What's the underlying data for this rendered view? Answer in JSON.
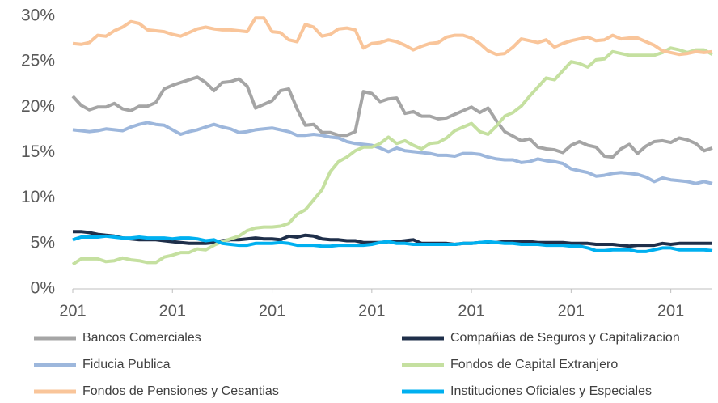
{
  "chart_data": {
    "type": "line",
    "categories": [
      "201",
      null,
      null,
      null,
      null,
      null,
      null,
      null,
      null,
      null,
      null,
      null,
      "201",
      null,
      null,
      null,
      null,
      null,
      null,
      null,
      null,
      null,
      null,
      null,
      "201",
      null,
      null,
      null,
      null,
      null,
      null,
      null,
      null,
      null,
      null,
      null,
      "201",
      null,
      null,
      null,
      null,
      null,
      null,
      null,
      null,
      null,
      null,
      null,
      "201",
      null,
      null,
      null,
      null,
      null,
      null,
      null,
      null,
      null,
      null,
      null,
      "201",
      null,
      null,
      null,
      null,
      null,
      null,
      null,
      null,
      null,
      null,
      null,
      "201",
      null,
      null,
      null,
      null,
      null
    ],
    "ylim": [
      0,
      30
    ],
    "yticks": [
      {
        "value": 0,
        "label": "0%"
      },
      {
        "value": 5,
        "label": "5%"
      },
      {
        "value": 10,
        "label": "10%"
      },
      {
        "value": 15,
        "label": "15%"
      },
      {
        "value": 20,
        "label": "20%"
      },
      {
        "value": 25,
        "label": "25%"
      },
      {
        "value": 30,
        "label": "30%"
      }
    ],
    "grid": false,
    "series": [
      {
        "name": "Bancos Comerciales",
        "color": "#a5a5a5",
        "values": [
          21.2,
          20.2,
          19.7,
          20.0,
          20.0,
          20.4,
          19.8,
          19.6,
          20.1,
          20.1,
          20.5,
          22.0,
          22.4,
          22.7,
          23.0,
          23.3,
          22.7,
          21.8,
          22.7,
          22.8,
          23.1,
          22.3,
          19.9,
          20.3,
          20.7,
          21.8,
          22.0,
          19.8,
          18.0,
          18.1,
          17.2,
          17.2,
          16.9,
          16.9,
          17.3,
          21.7,
          21.5,
          20.6,
          20.9,
          21.0,
          19.3,
          19.5,
          19.0,
          19.0,
          18.7,
          18.8,
          19.2,
          19.6,
          20.0,
          19.4,
          19.9,
          18.5,
          17.3,
          16.8,
          16.3,
          16.5,
          15.6,
          15.4,
          15.3,
          15.0,
          15.8,
          16.2,
          15.8,
          15.6,
          14.6,
          14.5,
          15.4,
          15.9,
          14.9,
          15.7,
          16.2,
          16.3,
          16.1,
          16.6,
          16.4,
          16.0,
          15.2,
          15.5
        ]
      },
      {
        "name": "Compañias de Seguros y Capitalizacion",
        "color": "#1f2f4a",
        "values": [
          6.3,
          6.3,
          6.2,
          6.0,
          5.9,
          5.8,
          5.6,
          5.5,
          5.4,
          5.4,
          5.4,
          5.3,
          5.2,
          5.1,
          5.0,
          5.0,
          5.0,
          5.1,
          5.3,
          5.4,
          5.4,
          5.5,
          5.6,
          5.5,
          5.5,
          5.4,
          5.8,
          5.7,
          5.9,
          5.8,
          5.5,
          5.4,
          5.4,
          5.3,
          5.3,
          5.1,
          5.1,
          5.1,
          5.2,
          5.2,
          5.3,
          5.4,
          5.0,
          5.0,
          5.0,
          5.0,
          4.9,
          5.0,
          5.0,
          5.1,
          5.1,
          5.1,
          5.2,
          5.2,
          5.2,
          5.2,
          5.1,
          5.1,
          5.1,
          5.1,
          5.0,
          5.0,
          5.0,
          4.9,
          4.9,
          4.9,
          4.8,
          4.7,
          4.8,
          4.8,
          4.8,
          5.0,
          4.9,
          5.0,
          5.0,
          5.0,
          5.0,
          5.0
        ]
      },
      {
        "name": "Fiducia Publica",
        "color": "#9db7dc",
        "values": [
          17.5,
          17.4,
          17.3,
          17.4,
          17.6,
          17.5,
          17.4,
          17.8,
          18.1,
          18.3,
          18.1,
          18.0,
          17.5,
          17.0,
          17.3,
          17.5,
          17.8,
          18.1,
          17.8,
          17.6,
          17.2,
          17.3,
          17.5,
          17.6,
          17.7,
          17.5,
          17.3,
          16.9,
          16.9,
          17.0,
          16.9,
          16.7,
          16.6,
          16.2,
          16.0,
          15.9,
          15.8,
          15.5,
          15.1,
          15.5,
          15.2,
          15.1,
          15.0,
          14.9,
          14.7,
          14.7,
          14.6,
          14.9,
          14.9,
          14.8,
          14.5,
          14.3,
          14.2,
          14.2,
          13.9,
          14.0,
          14.3,
          14.1,
          14.0,
          13.8,
          13.2,
          13.0,
          12.8,
          12.4,
          12.5,
          12.7,
          12.8,
          12.7,
          12.6,
          12.3,
          11.8,
          12.2,
          12.0,
          11.9,
          11.8,
          11.6,
          11.8,
          11.6
        ]
      },
      {
        "name": "Fondos de Capital Extranjero",
        "color": "#c5e0a0",
        "values": [
          2.7,
          3.3,
          3.3,
          3.3,
          3.0,
          3.1,
          3.4,
          3.2,
          3.1,
          2.9,
          2.9,
          3.5,
          3.7,
          4.0,
          4.0,
          4.4,
          4.3,
          4.8,
          5.2,
          5.5,
          5.8,
          6.4,
          6.7,
          6.8,
          6.8,
          6.9,
          7.2,
          8.2,
          8.7,
          9.8,
          10.9,
          12.9,
          14.0,
          14.5,
          15.2,
          15.6,
          15.6,
          16.0,
          16.7,
          16.0,
          16.3,
          15.8,
          15.4,
          16.0,
          16.1,
          16.6,
          17.4,
          17.8,
          18.2,
          17.3,
          17.0,
          17.9,
          19.0,
          19.4,
          20.1,
          21.2,
          22.2,
          23.2,
          23.0,
          24.0,
          25.0,
          24.8,
          24.4,
          25.2,
          25.3,
          26.1,
          25.9,
          25.7,
          25.7,
          25.7,
          25.7,
          26.0,
          26.5,
          26.3,
          26.0,
          26.3,
          26.3,
          25.8
        ]
      },
      {
        "name": "Fondos de Pensiones y Cesantias",
        "color": "#f9c59a",
        "values": [
          27,
          26.9,
          27.1,
          27.9,
          27.8,
          28.4,
          28.8,
          29.4,
          29.2,
          28.5,
          28.4,
          28.3,
          28.0,
          27.8,
          28.2,
          28.6,
          28.8,
          28.6,
          28.5,
          28.5,
          28.4,
          28.3,
          29.8,
          29.8,
          28.3,
          28.2,
          27.4,
          27.2,
          29.1,
          28.8,
          27.8,
          28.0,
          28.6,
          28.7,
          28.5,
          26.5,
          27.0,
          27.1,
          27.4,
          27.2,
          26.8,
          26.3,
          26.7,
          27.0,
          27.1,
          27.7,
          27.9,
          27.9,
          27.6,
          27.0,
          26.2,
          25.8,
          25.9,
          26.6,
          27.5,
          27.3,
          27.1,
          27.4,
          26.6,
          27.0,
          27.3,
          27.5,
          27.7,
          27.3,
          27.4,
          27.9,
          27.5,
          27.6,
          27.6,
          27.2,
          26.8,
          26.2,
          26.0,
          25.8,
          25.9,
          26.1,
          26.0,
          26.1
        ]
      },
      {
        "name": "Instituciones Oficiales y Especiales",
        "color": "#00b0f0",
        "values": [
          5.4,
          5.7,
          5.7,
          5.7,
          5.8,
          5.7,
          5.6,
          5.6,
          5.7,
          5.6,
          5.6,
          5.6,
          5.5,
          5.6,
          5.6,
          5.5,
          5.3,
          5.4,
          5.0,
          4.9,
          4.8,
          4.8,
          5.0,
          5.0,
          5.0,
          5.1,
          5.0,
          4.8,
          4.8,
          4.8,
          4.7,
          4.7,
          4.8,
          4.8,
          4.8,
          4.8,
          4.9,
          5.1,
          5.2,
          5.0,
          5.0,
          4.9,
          4.9,
          4.9,
          4.9,
          4.9,
          4.9,
          5.0,
          5.0,
          5.1,
          5.2,
          5.1,
          5.0,
          5.0,
          4.9,
          4.9,
          4.9,
          4.8,
          4.8,
          4.8,
          4.7,
          4.7,
          4.5,
          4.2,
          4.2,
          4.3,
          4.3,
          4.3,
          4.1,
          4.1,
          4.3,
          4.5,
          4.5,
          4.3,
          4.3,
          4.3,
          4.3,
          4.2
        ]
      }
    ]
  }
}
